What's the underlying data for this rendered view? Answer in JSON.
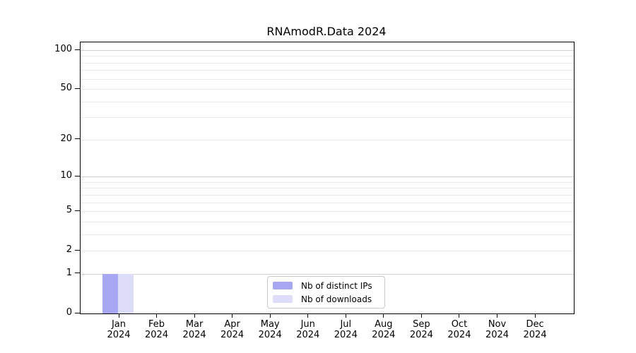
{
  "chart_data": {
    "type": "bar",
    "title": "RNAmodR.Data 2024",
    "categories": [
      "Jan",
      "Feb",
      "Mar",
      "Apr",
      "May",
      "Jun",
      "Jul",
      "Aug",
      "Sep",
      "Oct",
      "Nov",
      "Dec"
    ],
    "x_tick_year": "2024",
    "series": [
      {
        "name": "Nb of distinct IPs",
        "color": "#a7a7f3",
        "values": [
          1,
          0,
          0,
          0,
          0,
          0,
          0,
          0,
          0,
          0,
          0,
          0
        ]
      },
      {
        "name": "Nb of downloads",
        "color": "#dddcf9",
        "values": [
          1,
          0,
          0,
          0,
          0,
          0,
          0,
          0,
          0,
          0,
          0,
          0
        ]
      }
    ],
    "y_scale": "log1p",
    "y_ticks": [
      0,
      1,
      2,
      5,
      10,
      20,
      50,
      100
    ],
    "grid_major": [
      1,
      10,
      100
    ],
    "grid_minor": [
      2,
      3,
      4,
      5,
      6,
      7,
      8,
      9,
      20,
      30,
      40,
      50,
      60,
      70,
      80,
      90
    ],
    "ylim": [
      0,
      115
    ],
    "grid": "horizontal",
    "legend_position": "lower center",
    "colors": {
      "grid_major": "#cfcfcf",
      "grid_minor": "#ebebeb",
      "axis": "#000000",
      "legend_border": "#c9c9c9",
      "background": "#ffffff"
    }
  }
}
